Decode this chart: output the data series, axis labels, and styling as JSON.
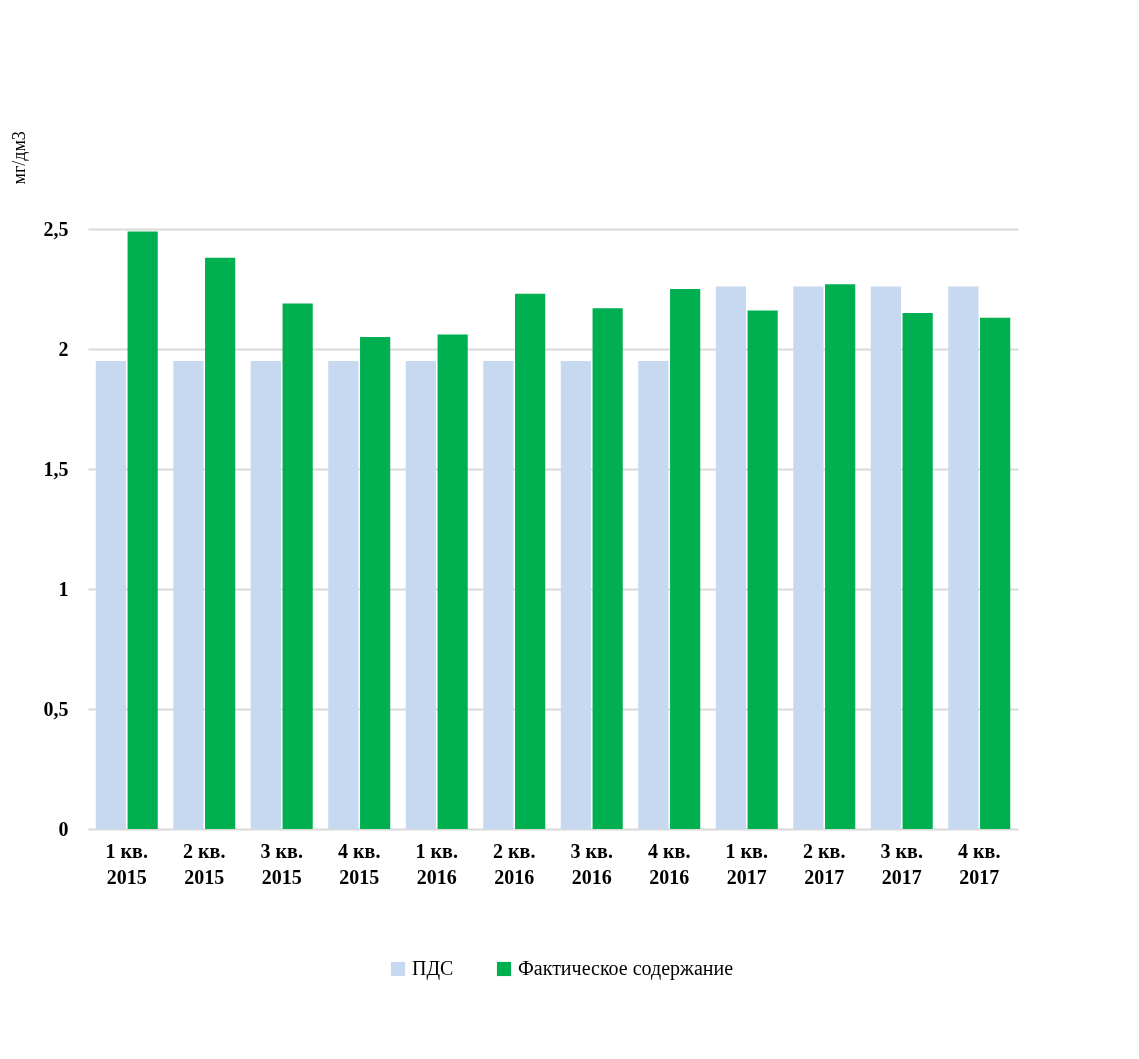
{
  "chart_data": {
    "type": "bar",
    "ylabel": "мг/дм3",
    "categories": [
      "1 кв. 2015",
      "2 кв. 2015",
      "3 кв. 2015",
      "4 кв. 2015",
      "1 кв. 2016",
      "2 кв. 2016",
      "3 кв. 2016",
      "4 кв. 2016",
      "1 кв. 2017",
      "2 кв. 2017",
      "3 кв. 2017",
      "4 кв. 2017"
    ],
    "series": [
      {
        "name": "ПДС",
        "color": "#c6d9f0",
        "values": [
          1.95,
          1.95,
          1.95,
          1.95,
          1.95,
          1.95,
          1.95,
          1.95,
          2.26,
          2.26,
          2.26,
          2.26
        ]
      },
      {
        "name": "Фактическое содержание",
        "color": "#00b050",
        "values": [
          2.49,
          2.38,
          2.19,
          2.05,
          2.06,
          2.23,
          2.17,
          2.25,
          2.16,
          2.27,
          2.15,
          2.13
        ]
      }
    ],
    "ylim": [
      0,
      2.5
    ],
    "yticks": [
      0,
      {
        "value": 0.5,
        "label": "0,5"
      },
      1,
      {
        "value": 1.5,
        "label": "1,5"
      },
      2,
      {
        "value": 2.5,
        "label": "2,5"
      }
    ],
    "grid": "y",
    "legend": "bottom"
  }
}
